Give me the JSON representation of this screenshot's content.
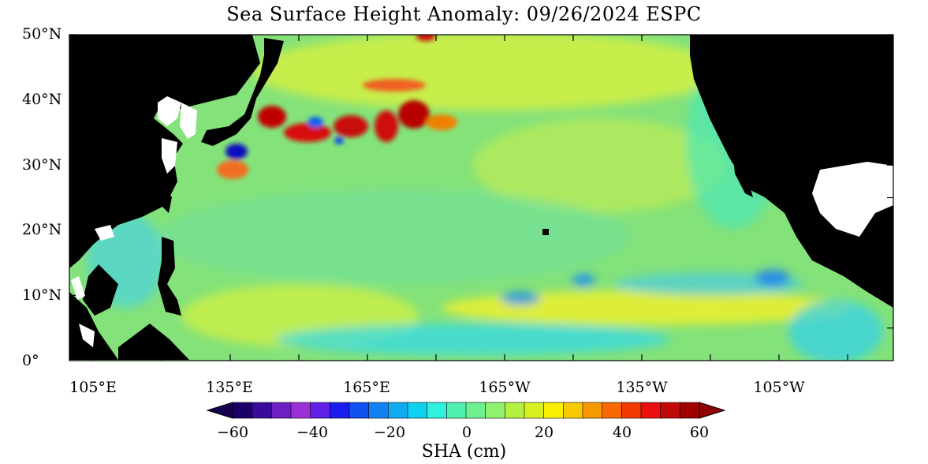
{
  "title": "Sea Surface Height Anomaly: 09/26/2024 ESPC",
  "lat_labels": [
    "50°N",
    "40°N",
    "30°N",
    "20°N",
    "10°N",
    "0°"
  ],
  "lon_labels": [
    "105°E",
    "135°E",
    "165°E",
    "165°W",
    "135°W",
    "105°W"
  ],
  "colorbar": {
    "title": "SHA (cm)",
    "tick_labels": [
      "−60",
      "−40",
      "−20",
      "0",
      "20",
      "40",
      "60"
    ],
    "min": -60,
    "max": 60,
    "colors": [
      "#1a0066",
      "#3a0a99",
      "#6e20c4",
      "#9a30d6",
      "#6020e8",
      "#1c1cf0",
      "#1050f0",
      "#1080f2",
      "#10aaf0",
      "#10d0f0",
      "#30f0e0",
      "#50f0b0",
      "#70f090",
      "#90f070",
      "#b4f040",
      "#d8f020",
      "#f8f000",
      "#f8c800",
      "#f89800",
      "#f86800",
      "#f03800",
      "#e81010",
      "#c00808",
      "#a00000"
    ]
  },
  "map_colors": {
    "land": "#000000",
    "no_data": "#ffffff",
    "ocean_base": "#7ee07a"
  }
}
